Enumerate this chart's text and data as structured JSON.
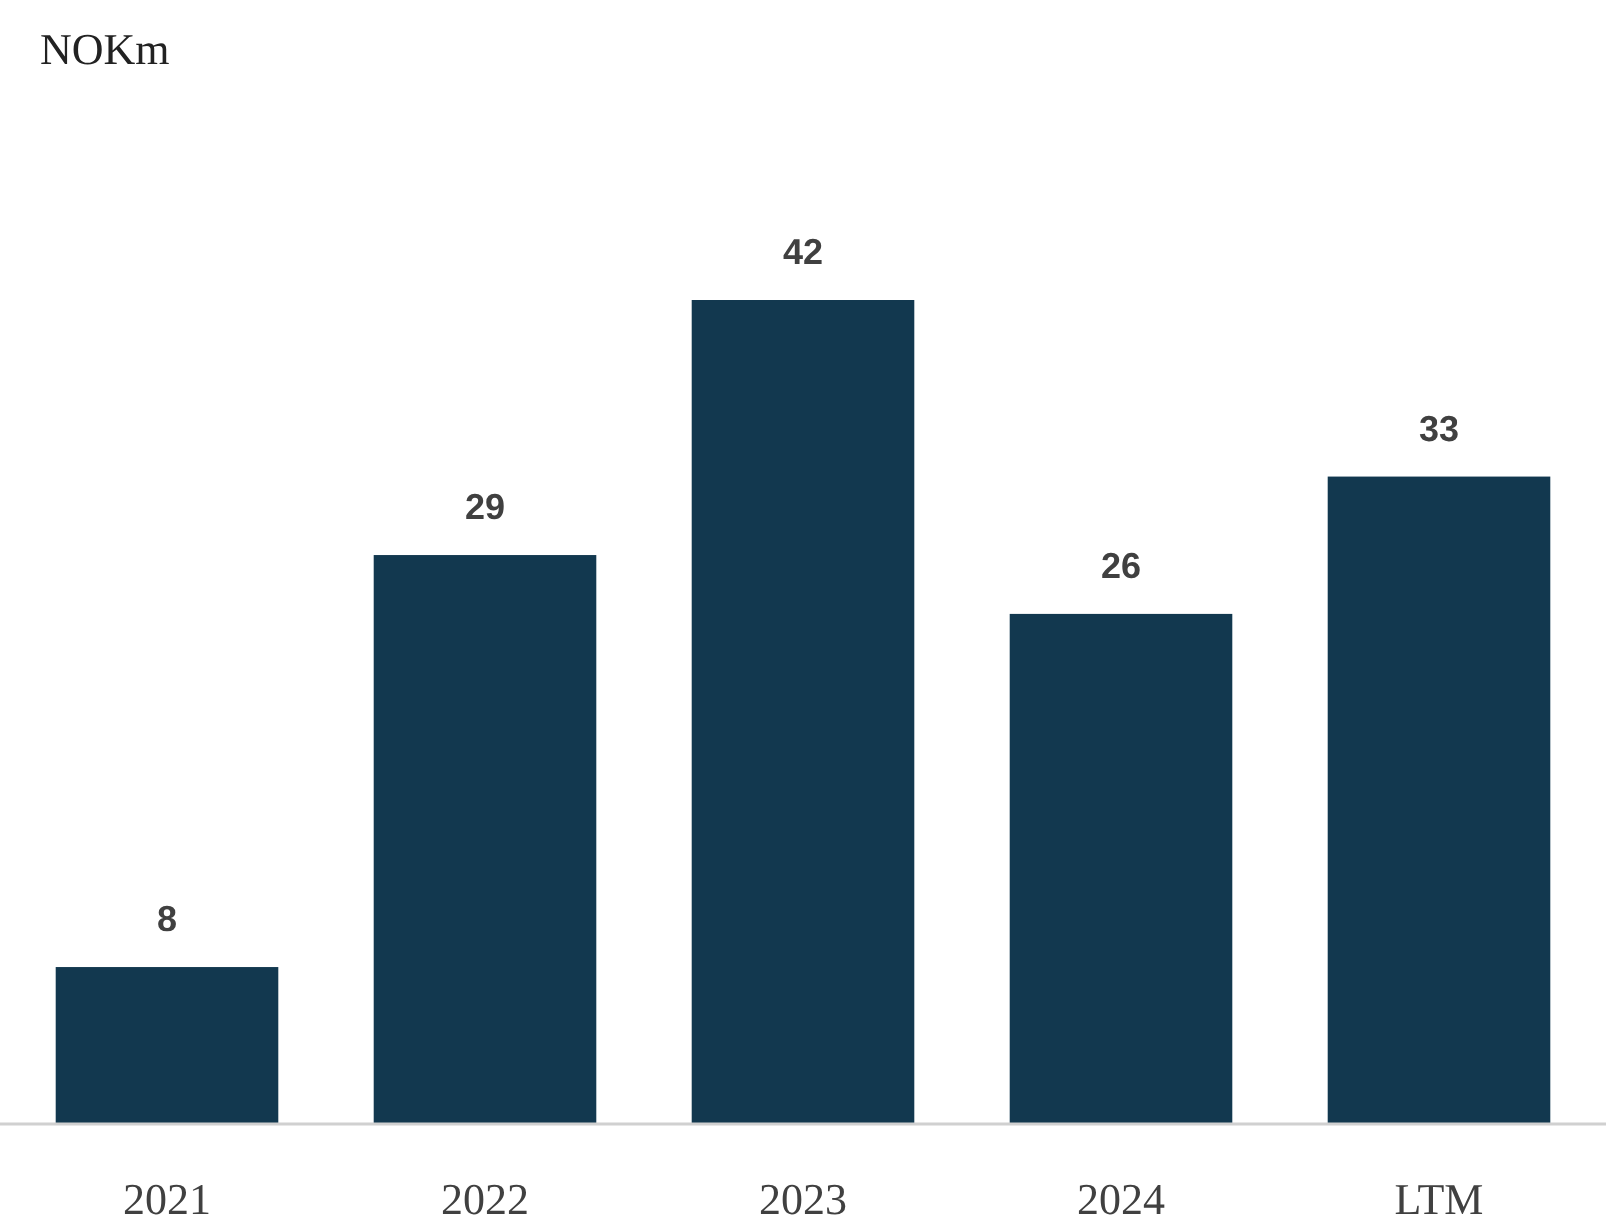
{
  "chart_data": {
    "type": "bar",
    "annotations": [
      "NOKm"
    ],
    "categories": [
      "2021",
      "2022",
      "2023",
      "2024",
      "LTM"
    ],
    "values": [
      8,
      29,
      42,
      26,
      33
    ],
    "color": "#12384f",
    "data_labels": true
  }
}
